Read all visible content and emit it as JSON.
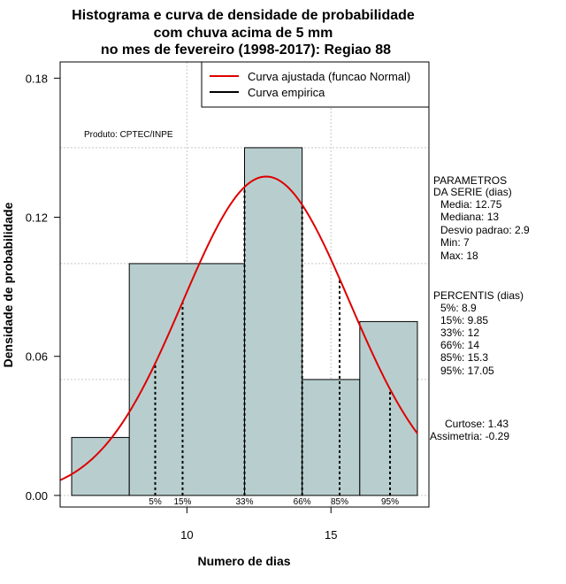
{
  "chart_data": {
    "type": "bar",
    "title": [
      "Histograma e curva de densidade de probabilidade",
      "com chuva acima de 5 mm",
      "no mes de fevereiro (1998-2017): Regiao 88"
    ],
    "xlabel": "Numero de dias",
    "ylabel": "Densidade de probabilidade",
    "xlim": [
      5.6,
      18.4
    ],
    "ylim": [
      -0.005,
      0.187
    ],
    "x_ticks": [
      10,
      15
    ],
    "y_ticks": [
      0.0,
      0.06,
      0.12,
      0.18
    ],
    "y_tick_labels": [
      "0.00",
      "0.06",
      "0.12",
      "0.18"
    ],
    "bins": [
      {
        "x0": 6,
        "x1": 8,
        "density": 0.025
      },
      {
        "x0": 8,
        "x1": 12,
        "density": 0.1
      },
      {
        "x0": 12,
        "x1": 14,
        "density": 0.15
      },
      {
        "x0": 14,
        "x1": 16,
        "density": 0.05
      },
      {
        "x0": 16,
        "x1": 18,
        "density": 0.075
      }
    ],
    "bar_color": "#b8cece",
    "curve_color": "#dd0000",
    "normal": {
      "mean": 12.75,
      "sd": 2.9
    },
    "percentiles": [
      {
        "label": "5%",
        "x": 8.9
      },
      {
        "label": "15%",
        "x": 9.85
      },
      {
        "label": "33%",
        "x": 12
      },
      {
        "label": "66%",
        "x": 14
      },
      {
        "label": "85%",
        "x": 15.3
      },
      {
        "label": "95%",
        "x": 17.05
      }
    ],
    "legend": {
      "position": "top-right",
      "entries": [
        {
          "label": "Curva ajustada (funcao Normal)",
          "color": "#dd0000"
        },
        {
          "label": "Curva empirica",
          "color": "#000000"
        }
      ]
    },
    "annotation": "Produto: CPTEC/INPE",
    "grid": true
  },
  "side_panel": {
    "params_title_1": "PARAMETROS",
    "params_title_2": "DA SERIE (dias)",
    "params": [
      "Media: 12.75",
      "Mediana: 13",
      "Desvio padrao: 2.9",
      "Min: 7",
      "Max: 18"
    ],
    "perc_title": "PERCENTIS (dias)",
    "perc": [
      "5%: 8.9",
      "15%: 9.85",
      "33%: 12",
      "66%: 14",
      "85%: 15.3",
      "95%: 17.05"
    ],
    "curtose": "Curtose: 1.43",
    "assimetria": "Assimetria: -0.29"
  }
}
